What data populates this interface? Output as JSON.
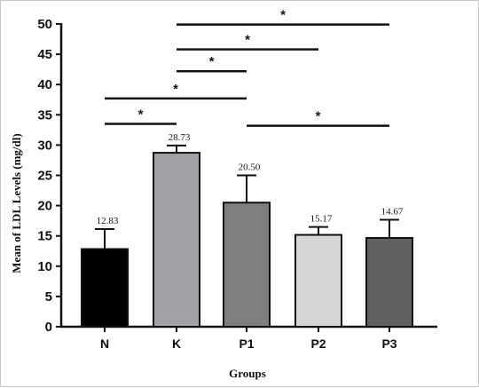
{
  "chart_data": {
    "type": "bar",
    "categories": [
      "N",
      "K",
      "P1",
      "P2",
      "P3"
    ],
    "values": [
      12.83,
      28.73,
      20.5,
      15.17,
      14.67
    ],
    "value_labels": [
      "12.83",
      "28.73",
      "20.50",
      "15.17",
      "14.67"
    ],
    "errors": [
      3.3,
      1.2,
      4.5,
      1.3,
      3.0
    ],
    "colors": [
      "#000000",
      "#a0a0a6",
      "#7f7f7f",
      "#d6d6d6",
      "#606060"
    ],
    "xlabel": "Groups",
    "ylabel": "Mean of LDL Levels (mg/dl)",
    "ylim": [
      0,
      50
    ],
    "yticks": [
      0,
      5,
      10,
      15,
      20,
      25,
      30,
      35,
      40,
      45,
      50
    ],
    "grid": false,
    "significance": [
      {
        "from": "N",
        "to": "K",
        "y": 33.5,
        "label": "*"
      },
      {
        "from": "N",
        "to": "P1",
        "y": 37.7,
        "label": "*"
      },
      {
        "from": "K",
        "to": "P1",
        "y": 42.2,
        "label": "*"
      },
      {
        "from": "K",
        "to": "P2",
        "y": 45.8,
        "label": "*"
      },
      {
        "from": "K",
        "to": "P3",
        "y": 49.9,
        "label": "*"
      },
      {
        "from": "P1",
        "to": "P3",
        "y": 33.2,
        "label": "*"
      }
    ]
  }
}
